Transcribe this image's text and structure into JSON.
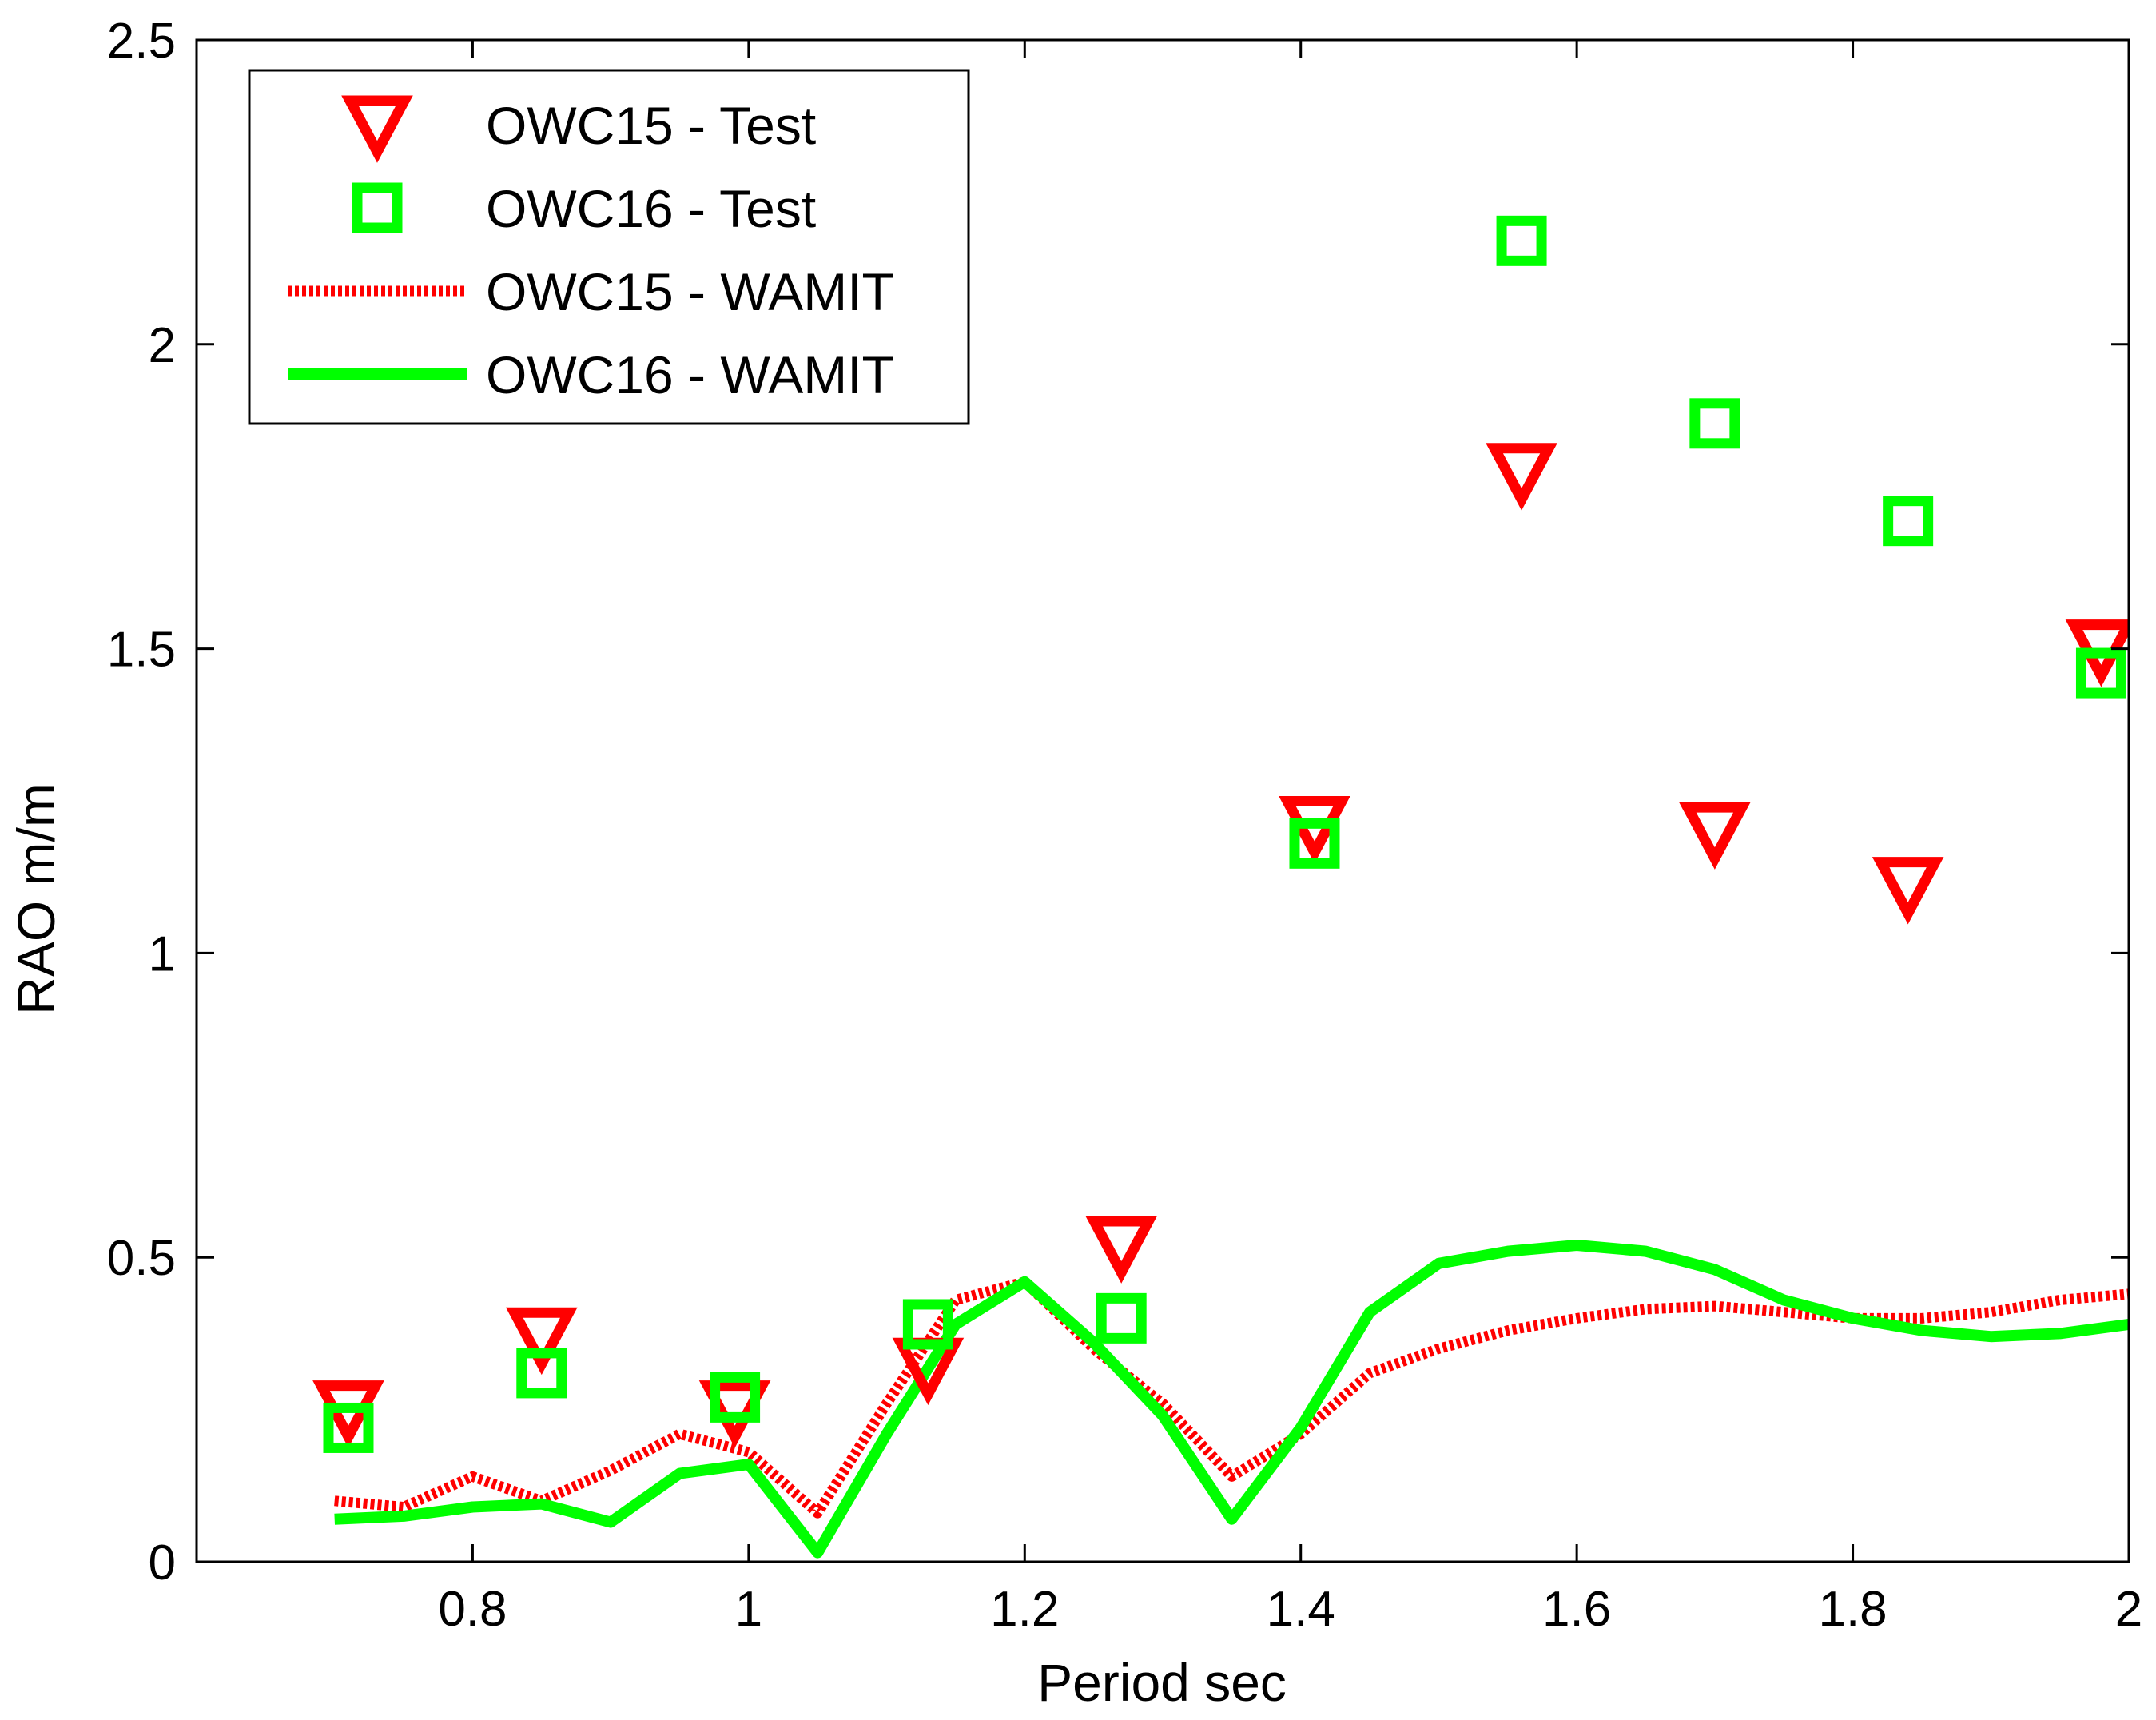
{
  "chart_data": {
    "type": "line",
    "title": "",
    "xlabel": "Period sec",
    "ylabel": "RAO m/m",
    "xlim": [
      0.6,
      2.0
    ],
    "ylim": [
      0,
      2.5
    ],
    "xticks": [
      0.8,
      1,
      1.2,
      1.4,
      1.6,
      1.8,
      2
    ],
    "xtick_labels": [
      "0.8",
      "1",
      "1.2",
      "1.4",
      "1.6",
      "1.8",
      "2"
    ],
    "yticks": [
      0,
      0.5,
      1,
      1.5,
      2,
      2.5
    ],
    "ytick_labels": [
      "0",
      "0.5",
      "1",
      "1.5",
      "2",
      "2.5"
    ],
    "legend_position": "top-left",
    "series": [
      {
        "name": "OWC15 - Test",
        "kind": "marker",
        "marker": "triangle-down",
        "color": "#ff0000",
        "x": [
          0.71,
          0.85,
          0.99,
          1.13,
          1.27,
          1.41,
          1.56,
          1.7,
          1.84,
          1.98
        ],
        "y": [
          0.25,
          0.37,
          0.25,
          0.32,
          0.52,
          1.21,
          1.79,
          1.2,
          1.11,
          1.5
        ]
      },
      {
        "name": "OWC16 - Test",
        "kind": "marker",
        "marker": "square",
        "color": "#00ff00",
        "x": [
          0.71,
          0.85,
          0.99,
          1.13,
          1.27,
          1.41,
          1.56,
          1.7,
          1.84,
          1.98
        ],
        "y": [
          0.22,
          0.31,
          0.27,
          0.39,
          0.4,
          1.18,
          2.17,
          1.87,
          1.71,
          1.46
        ]
      },
      {
        "name": "OWC15 - WAMIT",
        "kind": "line",
        "line_style": "dotted",
        "color": "#ff0000",
        "x": [
          0.7,
          0.75,
          0.8,
          0.85,
          0.9,
          0.95,
          1.0,
          1.05,
          1.1,
          1.15,
          1.2,
          1.25,
          1.3,
          1.35,
          1.4,
          1.45,
          1.5,
          1.55,
          1.6,
          1.65,
          1.7,
          1.75,
          1.8,
          1.85,
          1.9,
          1.95,
          2.0
        ],
        "y": [
          0.1,
          0.09,
          0.14,
          0.1,
          0.15,
          0.21,
          0.18,
          0.08,
          0.26,
          0.43,
          0.46,
          0.35,
          0.26,
          0.14,
          0.21,
          0.31,
          0.35,
          0.38,
          0.4,
          0.415,
          0.42,
          0.41,
          0.4,
          0.4,
          0.41,
          0.43,
          0.44
        ]
      },
      {
        "name": "OWC16 - WAMIT",
        "kind": "line",
        "line_style": "solid",
        "color": "#00ff00",
        "x": [
          0.7,
          0.75,
          0.8,
          0.85,
          0.9,
          0.95,
          1.0,
          1.05,
          1.1,
          1.15,
          1.2,
          1.25,
          1.3,
          1.35,
          1.4,
          1.45,
          1.5,
          1.55,
          1.6,
          1.65,
          1.7,
          1.75,
          1.8,
          1.85,
          1.9,
          1.95,
          2.0
        ],
        "y": [
          0.07,
          0.075,
          0.09,
          0.095,
          0.065,
          0.145,
          0.16,
          0.015,
          0.21,
          0.39,
          0.46,
          0.36,
          0.24,
          0.07,
          0.22,
          0.41,
          0.49,
          0.51,
          0.52,
          0.51,
          0.48,
          0.43,
          0.4,
          0.38,
          0.37,
          0.375,
          0.39
        ]
      }
    ]
  }
}
